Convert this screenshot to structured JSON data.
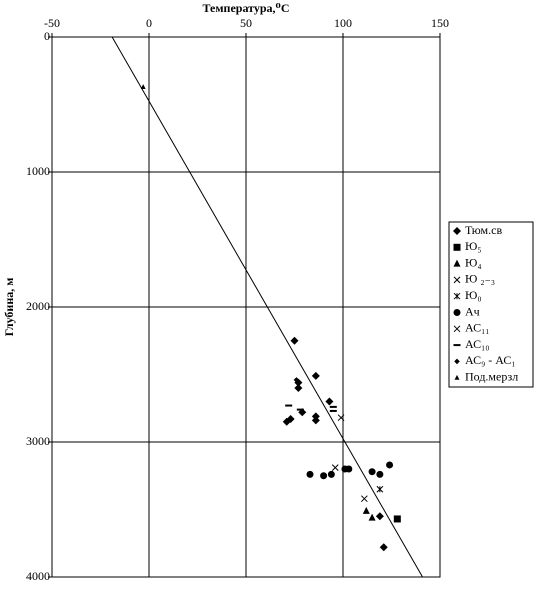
{
  "chart_data": {
    "type": "scatter",
    "title": "Температура,⁰С",
    "ylabel": "Глубина, м",
    "xlim": [
      -50,
      150
    ],
    "xticks": [
      -50,
      0,
      50,
      100,
      150
    ],
    "ylim": [
      0,
      4000
    ],
    "yticks": [
      0,
      1000,
      2000,
      3000,
      4000
    ],
    "y_inverted": true,
    "x_axis_top": true,
    "grid": true,
    "trend_line": {
      "color": "#000000",
      "x": [
        -19,
        141
      ],
      "y": [
        0,
        4000
      ]
    },
    "series": [
      {
        "name": "Тюм.св",
        "marker": "diamond",
        "color": "#000000",
        "x": [
          75,
          77,
          77,
          86,
          93,
          86,
          86,
          73,
          71,
          79,
          119,
          121
        ],
        "y": [
          2250,
          2560,
          2600,
          2510,
          2700,
          2810,
          2840,
          2830,
          2850,
          2780,
          3550,
          3780
        ]
      },
      {
        "name": "Ю₅",
        "marker": "square",
        "color": "#000000",
        "x": [
          128
        ],
        "y": [
          3570
        ]
      },
      {
        "name": "Ю₄",
        "marker": "triangle",
        "color": "#000000",
        "x": [
          112,
          115
        ],
        "y": [
          3510,
          3560
        ]
      },
      {
        "name": "Ю ₂₋₃",
        "marker": "x",
        "color": "#000000",
        "x": [
          96
        ],
        "y": [
          3190
        ]
      },
      {
        "name": "Ю₀",
        "marker": "star",
        "color": "#000000",
        "x": [
          119
        ],
        "y": [
          3350
        ]
      },
      {
        "name": "Ач",
        "marker": "circle",
        "color": "#000000",
        "x": [
          83,
          90,
          94,
          101,
          103,
          115,
          119,
          124
        ],
        "y": [
          3240,
          3250,
          3240,
          3200,
          3200,
          3220,
          3240,
          3170
        ]
      },
      {
        "name": "АС₁₁",
        "marker": "x",
        "color": "#000000",
        "x": [
          99,
          111
        ],
        "y": [
          2820,
          3420
        ]
      },
      {
        "name": "АС₁₀",
        "marker": "dash",
        "color": "#000000",
        "x": [
          72,
          78,
          95,
          95
        ],
        "y": [
          2730,
          2760,
          2740,
          2770
        ]
      },
      {
        "name": "АС₉ - АС₁",
        "marker": "diamond-small",
        "color": "#000000",
        "x": [
          76
        ],
        "y": [
          2540
        ]
      },
      {
        "name": "Под.мерзл",
        "marker": "triangle-small",
        "color": "#000000",
        "x": [
          -3
        ],
        "y": [
          370
        ]
      }
    ]
  }
}
